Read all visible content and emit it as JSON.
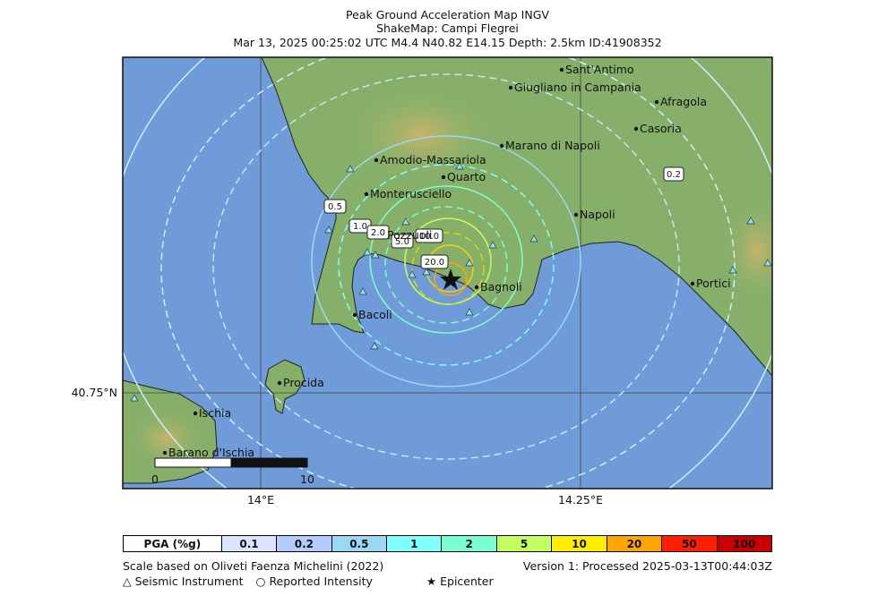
{
  "header": {
    "line1": "Peak Ground Acceleration Map INGV",
    "line2": "ShakeMap: Campi Flegrei",
    "line3": "Mar 13, 2025 00:25:02 UTC M4.4 N40.82 E14.15 Depth: 2.5km ID:41908352"
  },
  "map": {
    "colors": {
      "sea": "#6f9bd8",
      "land": "#86b06a",
      "hill": "#c8b46a",
      "contour_cool": "#bfe8f5",
      "contour_warm": "#f0c030"
    },
    "cities": [
      {
        "name": "Sant'Antimo"
      },
      {
        "name": "Giugliano in Campania"
      },
      {
        "name": "Afragola"
      },
      {
        "name": "Casoria"
      },
      {
        "name": "Marano di Napoli"
      },
      {
        "name": "Amodio-Massariola"
      },
      {
        "name": "Quarto"
      },
      {
        "name": "Monterusciello"
      },
      {
        "name": "Napoli"
      },
      {
        "name": "Pozzuoli"
      },
      {
        "name": "Bagnoli"
      },
      {
        "name": "Portici"
      },
      {
        "name": "Bacoli"
      },
      {
        "name": "Procida"
      },
      {
        "name": "Ischia"
      },
      {
        "name": "Barano d'Ischia"
      }
    ],
    "contour_labels": [
      "0.2",
      "0.5",
      "1.0",
      "2.0",
      "5.0",
      "10.0",
      "20.0"
    ],
    "axis": {
      "lat_label": "40.75°N",
      "lon1": "14°E",
      "lon2": "14.25°E"
    },
    "scalebar": {
      "start": "0",
      "end": "10"
    }
  },
  "legend": {
    "head": "PGA (%g)",
    "items": [
      {
        "label": "0.1",
        "color": "#dce4ff"
      },
      {
        "label": "0.2",
        "color": "#b4ccff"
      },
      {
        "label": "0.5",
        "color": "#9ad8f5"
      },
      {
        "label": "1",
        "color": "#80ffff"
      },
      {
        "label": "2",
        "color": "#7affd0"
      },
      {
        "label": "5",
        "color": "#c4ff60"
      },
      {
        "label": "10",
        "color": "#ffee00"
      },
      {
        "label": "20",
        "color": "#ffa500"
      },
      {
        "label": "50",
        "color": "#ff1e00"
      },
      {
        "label": "100",
        "color": "#c80000"
      }
    ]
  },
  "footer": {
    "scale_text": "Scale based on Oliveti Faenza Michelini (2022)",
    "version_text": "Version 1: Processed 2025-03-13T00:44:03Z",
    "seismic_instrument": "Seismic Instrument",
    "reported_intensity": "Reported Intensity",
    "epicenter": "Epicenter"
  }
}
